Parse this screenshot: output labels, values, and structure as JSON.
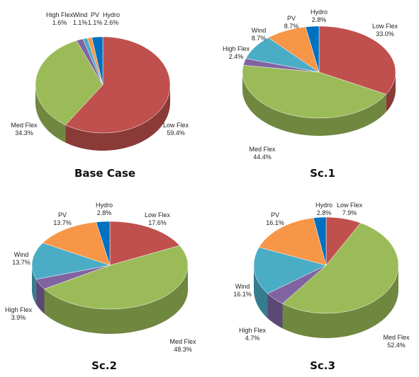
{
  "colors": {
    "Low Flex": "#C0504D",
    "Med Flex": "#9BBB59",
    "High Flex": "#8064A2",
    "Wind": "#4BACC6",
    "PV": "#F79646",
    "Hydro": "#0070C0"
  },
  "chart_data": [
    {
      "type": "pie",
      "title": "Base Case",
      "slices": [
        {
          "name": "Low Flex",
          "value": 59.4,
          "label": "59.4%"
        },
        {
          "name": "Med Flex",
          "value": 34.3,
          "label": "34.3%"
        },
        {
          "name": "High Flex",
          "value": 1.6,
          "label": "1.6%"
        },
        {
          "name": "Wind",
          "value": 1.1,
          "label": "1.1%"
        },
        {
          "name": "PV",
          "value": 1.1,
          "label": "1.1%"
        },
        {
          "name": "Hydro",
          "value": 2.6,
          "label": "2.6%"
        }
      ]
    },
    {
      "type": "pie",
      "title": "Sc.1",
      "slices": [
        {
          "name": "Low Flex",
          "value": 33.0,
          "label": "33.0%"
        },
        {
          "name": "Med Flex",
          "value": 44.4,
          "label": "44.4%"
        },
        {
          "name": "High Flex",
          "value": 2.4,
          "label": "2.4%"
        },
        {
          "name": "Wind",
          "value": 8.7,
          "label": "8.7%"
        },
        {
          "name": "PV",
          "value": 8.7,
          "label": "8.7%"
        },
        {
          "name": "Hydro",
          "value": 2.8,
          "label": "2.8%"
        }
      ]
    },
    {
      "type": "pie",
      "title": "Sc.2",
      "slices": [
        {
          "name": "Low Flex",
          "value": 17.6,
          "label": "17.6%"
        },
        {
          "name": "Med Flex",
          "value": 48.3,
          "label": "48.3%"
        },
        {
          "name": "High Flex",
          "value": 3.9,
          "label": "3.9%"
        },
        {
          "name": "Wind",
          "value": 13.7,
          "label": "13.7%"
        },
        {
          "name": "PV",
          "value": 13.7,
          "label": "13.7%"
        },
        {
          "name": "Hydro",
          "value": 2.8,
          "label": "2.8%"
        }
      ]
    },
    {
      "type": "pie",
      "title": "Sc.3",
      "slices": [
        {
          "name": "Low Flex",
          "value": 7.9,
          "label": "7.9%"
        },
        {
          "name": "Med Flex",
          "value": 52.4,
          "label": "52.4%"
        },
        {
          "name": "High Flex",
          "value": 4.7,
          "label": "4.7%"
        },
        {
          "name": "Wind",
          "value": 16.1,
          "label": "16.1%"
        },
        {
          "name": "PV",
          "value": 16.1,
          "label": "16.1%"
        },
        {
          "name": "Hydro",
          "value": 2.8,
          "label": "2.8%"
        }
      ]
    }
  ]
}
